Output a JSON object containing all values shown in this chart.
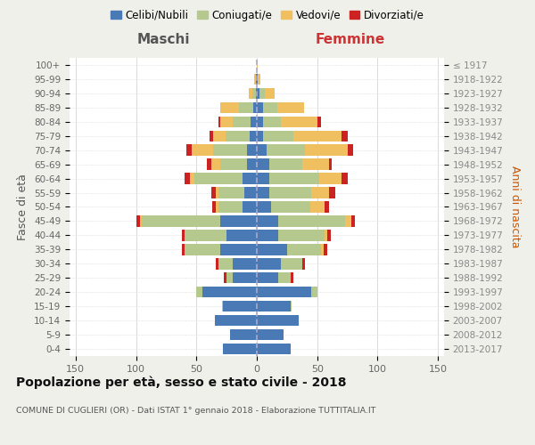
{
  "age_groups": [
    "0-4",
    "5-9",
    "10-14",
    "15-19",
    "20-24",
    "25-29",
    "30-34",
    "35-39",
    "40-44",
    "45-49",
    "50-54",
    "55-59",
    "60-64",
    "65-69",
    "70-74",
    "75-79",
    "80-84",
    "85-89",
    "90-94",
    "95-99",
    "100+"
  ],
  "birth_years": [
    "2013-2017",
    "2008-2012",
    "2003-2007",
    "1998-2002",
    "1993-1997",
    "1988-1992",
    "1983-1987",
    "1978-1982",
    "1973-1977",
    "1968-1972",
    "1963-1967",
    "1958-1962",
    "1953-1957",
    "1948-1952",
    "1943-1947",
    "1938-1942",
    "1933-1937",
    "1928-1932",
    "1923-1927",
    "1918-1922",
    "≤ 1917"
  ],
  "colors": {
    "celibi": "#4a7ab5",
    "coniugati": "#b5c98e",
    "vedovi": "#f0c060",
    "divorziati": "#cc2222"
  },
  "maschi": {
    "celibi": [
      28,
      22,
      35,
      28,
      45,
      20,
      20,
      30,
      25,
      30,
      12,
      10,
      12,
      8,
      8,
      6,
      5,
      3,
      1,
      1,
      0
    ],
    "coniugati": [
      0,
      0,
      0,
      1,
      5,
      5,
      12,
      30,
      35,
      65,
      20,
      22,
      40,
      22,
      28,
      20,
      15,
      12,
      3,
      0,
      0
    ],
    "vedovi": [
      0,
      0,
      0,
      0,
      0,
      0,
      0,
      0,
      0,
      2,
      2,
      2,
      3,
      8,
      18,
      10,
      10,
      15,
      3,
      1,
      0
    ],
    "divorziati": [
      0,
      0,
      0,
      0,
      0,
      2,
      2,
      2,
      2,
      3,
      3,
      4,
      5,
      3,
      4,
      3,
      2,
      0,
      0,
      0,
      0
    ]
  },
  "femmine": {
    "celibi": [
      28,
      22,
      35,
      28,
      45,
      18,
      20,
      25,
      18,
      18,
      12,
      10,
      10,
      10,
      8,
      5,
      5,
      5,
      2,
      1,
      0
    ],
    "coniugati": [
      0,
      0,
      0,
      1,
      5,
      10,
      18,
      28,
      38,
      55,
      32,
      35,
      42,
      28,
      32,
      25,
      15,
      12,
      5,
      0,
      0
    ],
    "vedovi": [
      0,
      0,
      0,
      0,
      0,
      0,
      0,
      2,
      2,
      5,
      12,
      15,
      18,
      22,
      35,
      40,
      30,
      22,
      8,
      2,
      1
    ],
    "divorziati": [
      0,
      0,
      0,
      0,
      0,
      2,
      2,
      3,
      3,
      3,
      4,
      5,
      5,
      2,
      5,
      5,
      3,
      0,
      0,
      0,
      0
    ]
  },
  "title": "Popolazione per età, sesso e stato civile - 2018",
  "subtitle": "COMUNE DI CUGLIERI (OR) - Dati ISTAT 1° gennaio 2018 - Elaborazione TUTTITALIA.IT",
  "xlabel_left": "Maschi",
  "xlabel_right": "Femmine",
  "ylabel_left": "Fasce di età",
  "ylabel_right": "Anni di nascita",
  "xlim": 155,
  "bg_color": "#f0f0eb",
  "plot_bg": "#ffffff",
  "legend_labels": [
    "Celibi/Nubili",
    "Coniugati/e",
    "Vedovi/e",
    "Divorziati/e"
  ]
}
